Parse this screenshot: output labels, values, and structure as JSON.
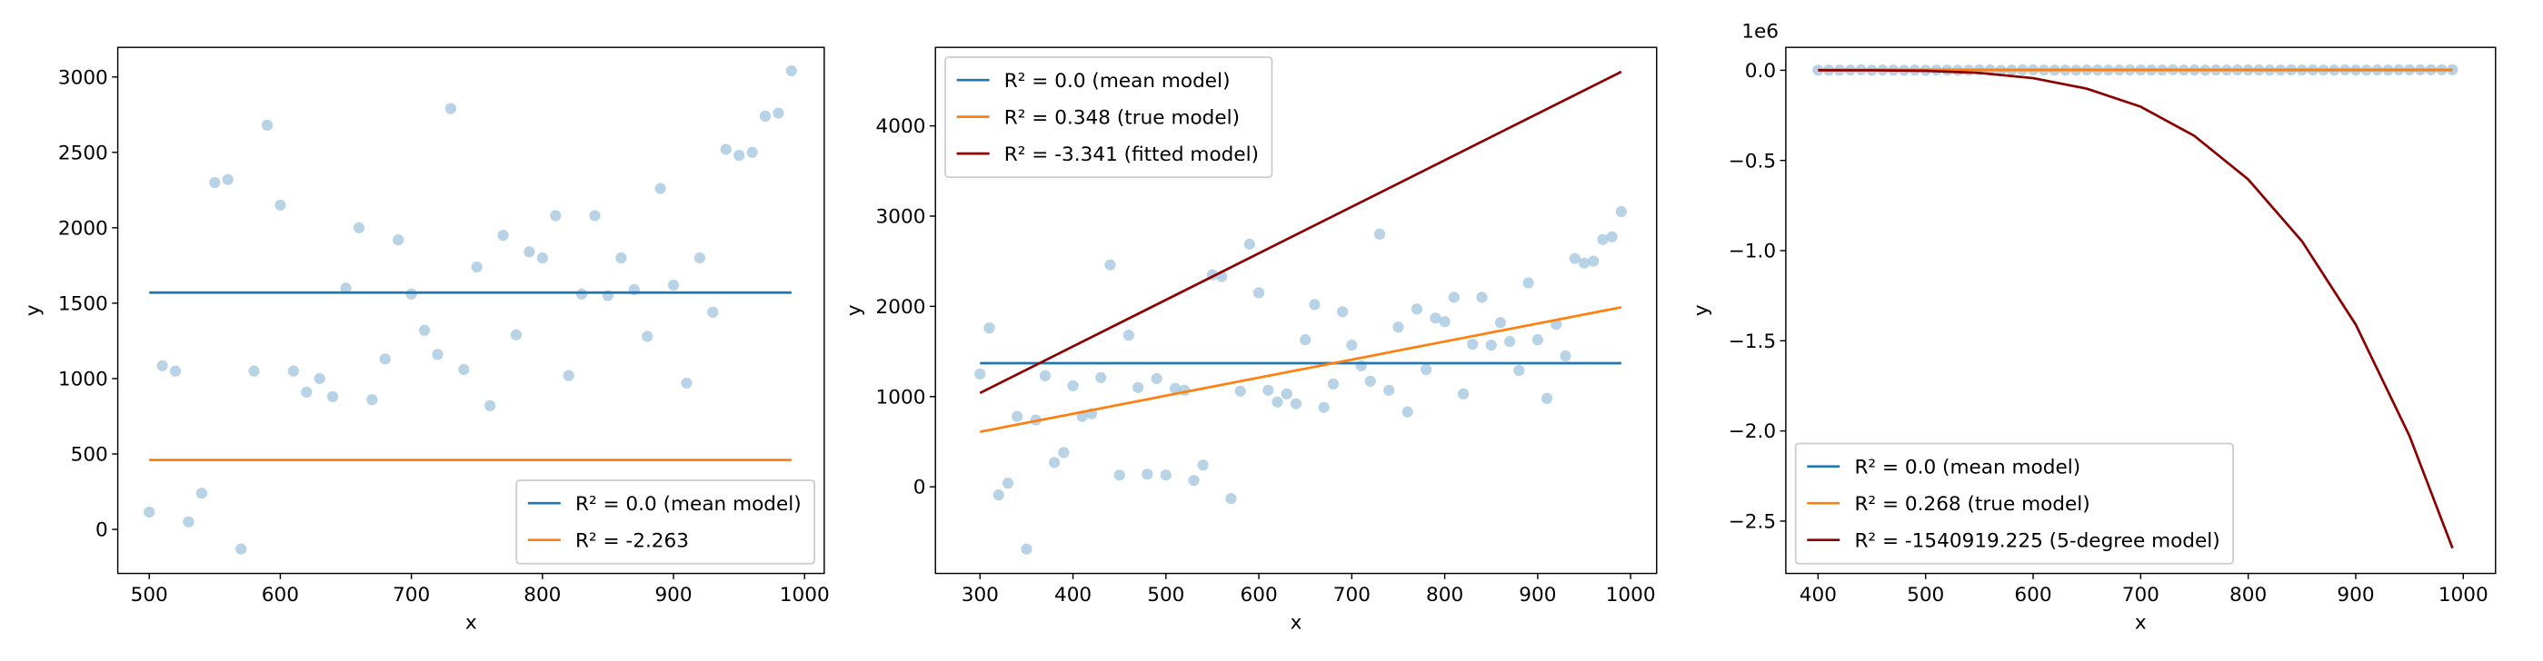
{
  "chart_data": [
    {
      "type": "scatter",
      "xlabel": "x",
      "ylabel": "y",
      "xlim": [
        476,
        1015
      ],
      "ylim": [
        -292,
        3196
      ],
      "xticks": [
        500,
        600,
        700,
        800,
        900,
        1000
      ],
      "yticks": [
        0,
        500,
        1000,
        1500,
        2000,
        2500,
        3000
      ],
      "legend": "lower right",
      "scatter": {
        "color": "#a6c8e0",
        "x": [
          500,
          510,
          520,
          530,
          540,
          550,
          560,
          570,
          580,
          590,
          600,
          610,
          620,
          630,
          640,
          650,
          660,
          670,
          680,
          690,
          700,
          710,
          720,
          730,
          740,
          750,
          760,
          770,
          780,
          790,
          800,
          810,
          820,
          830,
          840,
          850,
          860,
          870,
          880,
          890,
          900,
          910,
          920,
          930,
          940,
          950,
          960,
          970,
          980,
          990
        ],
        "values": [
          115,
          1085,
          1050,
          50,
          240,
          2300,
          2320,
          -130,
          1050,
          2680,
          2150,
          1050,
          910,
          1000,
          880,
          1600,
          2000,
          860,
          1130,
          1920,
          1560,
          1320,
          1160,
          2790,
          1060,
          1740,
          820,
          1950,
          1290,
          1840,
          1800,
          2080,
          1020,
          1560,
          2080,
          1550,
          1800,
          1590,
          1280,
          2260,
          1620,
          970,
          1800,
          1440,
          2520,
          2480,
          2500,
          2740,
          2760,
          3040
        ]
      },
      "series": [
        {
          "name": "R² = 0.0 (mean model)",
          "color": "#1f77b4",
          "x": [
            500,
            990
          ],
          "values": [
            1570,
            1570
          ]
        },
        {
          "name": "R² = -2.263",
          "color": "#ff7f0e",
          "x": [
            500,
            990
          ],
          "values": [
            460,
            460
          ]
        }
      ]
    },
    {
      "type": "scatter",
      "xlabel": "x",
      "ylabel": "y",
      "xlim": [
        252,
        1028
      ],
      "ylim": [
        -960,
        4870
      ],
      "xticks": [
        300,
        400,
        500,
        600,
        700,
        800,
        900,
        1000
      ],
      "yticks": [
        0,
        1000,
        2000,
        3000,
        4000
      ],
      "legend": "upper left",
      "scatter": {
        "color": "#a6c8e0",
        "x": [
          300,
          310,
          320,
          330,
          340,
          350,
          360,
          370,
          380,
          390,
          400,
          410,
          420,
          430,
          440,
          450,
          460,
          470,
          480,
          490,
          500,
          510,
          520,
          530,
          540,
          550,
          560,
          570,
          580,
          590,
          600,
          610,
          620,
          630,
          640,
          650,
          660,
          670,
          680,
          690,
          700,
          710,
          720,
          730,
          740,
          750,
          760,
          770,
          780,
          790,
          800,
          810,
          820,
          830,
          840,
          850,
          860,
          870,
          880,
          890,
          900,
          910,
          920,
          930,
          940,
          950,
          960,
          970,
          980,
          990
        ],
        "values": [
          1250,
          1760,
          -90,
          40,
          780,
          -690,
          740,
          1230,
          270,
          380,
          1120,
          780,
          810,
          1210,
          2460,
          130,
          1680,
          1100,
          140,
          1200,
          130,
          1090,
          1070,
          70,
          240,
          2350,
          2330,
          -130,
          1060,
          2690,
          2150,
          1070,
          940,
          1030,
          920,
          1630,
          2020,
          880,
          1140,
          1940,
          1570,
          1340,
          1170,
          2800,
          1070,
          1770,
          830,
          1970,
          1300,
          1870,
          1830,
          2100,
          1030,
          1580,
          2100,
          1570,
          1820,
          1610,
          1290,
          2260,
          1630,
          980,
          1800,
          1450,
          2530,
          2480,
          2500,
          2740,
          2770,
          3050
        ]
      },
      "series": [
        {
          "name": "R² = 0.0 (mean model)",
          "color": "#1f77b4",
          "x": [
            300,
            990
          ],
          "values": [
            1370,
            1370
          ]
        },
        {
          "name": "R² = 0.348 (true model)",
          "color": "#ff7f0e",
          "x": [
            300,
            990
          ],
          "values": [
            610,
            1990
          ]
        },
        {
          "name": "R² = -3.341 (fitted model)",
          "color": "#8b0000",
          "x": [
            300,
            990
          ],
          "values": [
            1040,
            4600
          ]
        }
      ]
    },
    {
      "type": "scatter",
      "xlabel": "x",
      "ylabel": "y",
      "y_offset_text": "1e6",
      "xlim": [
        370,
        1030
      ],
      "ylim": [
        -2790000,
        127000
      ],
      "xticks": [
        400,
        500,
        600,
        700,
        800,
        900,
        1000
      ],
      "yticks": [
        {
          "value": 0,
          "label": "0.0"
        },
        {
          "value": -500000,
          "label": "−0.5"
        },
        {
          "value": -1000000,
          "label": "−1.0"
        },
        {
          "value": -1500000,
          "label": "−1.5"
        },
        {
          "value": -2000000,
          "label": "−2.0"
        },
        {
          "value": -2500000,
          "label": "−2.5"
        }
      ],
      "legend": "lower left",
      "scatter": {
        "color": "#a6c8e0",
        "x": [
          400,
          410,
          420,
          430,
          440,
          450,
          460,
          470,
          480,
          490,
          500,
          510,
          520,
          530,
          540,
          550,
          560,
          570,
          580,
          590,
          600,
          610,
          620,
          630,
          640,
          650,
          660,
          670,
          680,
          690,
          700,
          710,
          720,
          730,
          740,
          750,
          760,
          770,
          780,
          790,
          800,
          810,
          820,
          830,
          840,
          850,
          860,
          870,
          880,
          890,
          900,
          910,
          920,
          930,
          940,
          950,
          960,
          970,
          980,
          990
        ],
        "values": [
          1120,
          780,
          810,
          1210,
          2460,
          130,
          1680,
          1100,
          140,
          1200,
          130,
          1090,
          1070,
          70,
          240,
          2350,
          2330,
          -130,
          1060,
          2690,
          2150,
          1070,
          940,
          1030,
          920,
          1630,
          2020,
          880,
          1140,
          1940,
          1570,
          1340,
          1170,
          2800,
          1070,
          1770,
          830,
          1970,
          1300,
          1870,
          1830,
          2100,
          1030,
          1580,
          2100,
          1570,
          1820,
          1610,
          1290,
          2260,
          1630,
          980,
          1800,
          1450,
          2530,
          2480,
          2500,
          2740,
          2770,
          3050
        ]
      },
      "series": [
        {
          "name": "R² = 0.0 (mean model)",
          "color": "#1f77b4",
          "x": [
            400,
            990
          ],
          "values": [
            1560,
            1560
          ]
        },
        {
          "name": "R² = 0.268 (true model)",
          "color": "#ff7f0e",
          "x": [
            400,
            990
          ],
          "values": [
            810,
            1990
          ]
        },
        {
          "name": "R² = -1540919.225 (5-degree model)",
          "color": "#8b0000",
          "x": [
            400,
            450,
            500,
            550,
            600,
            650,
            700,
            750,
            800,
            850,
            900,
            950,
            990
          ],
          "values": [
            0,
            -220,
            -3100,
            -14500,
            -43500,
            -102000,
            -202000,
            -364000,
            -605000,
            -948000,
            -1410000,
            -2028000,
            -2650000
          ]
        }
      ]
    }
  ]
}
